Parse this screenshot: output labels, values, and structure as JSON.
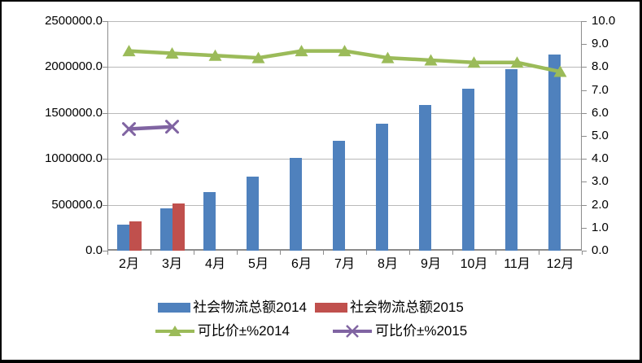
{
  "chart_data": {
    "type": "combo-bar-line",
    "title": "",
    "categories": [
      "2月",
      "3月",
      "4月",
      "5月",
      "6月",
      "7月",
      "8月",
      "9月",
      "10月",
      "11月",
      "12月"
    ],
    "left_axis": {
      "min": 0,
      "max": 2500000,
      "step": 500000,
      "tick_labels": [
        "2500000.0",
        "2000000.0",
        "1500000.0",
        "1000000.0",
        "500000.0",
        "0.0"
      ]
    },
    "right_axis": {
      "min": 0,
      "max": 10,
      "step": 1,
      "tick_labels": [
        "10.0",
        "9.0",
        "8.0",
        "7.0",
        "6.0",
        "5.0",
        "4.0",
        "3.0",
        "2.0",
        "1.0",
        "0.0"
      ]
    },
    "grid": true,
    "legend_position": "bottom",
    "series": [
      {
        "name": "社会物流总额2014",
        "type": "bar",
        "axis": "left",
        "color": "#4F81BD",
        "values": [
          280000,
          465000,
          635000,
          810000,
          1010000,
          1200000,
          1385000,
          1590000,
          1765000,
          1975000,
          2135000
        ]
      },
      {
        "name": "社会物流总额2015",
        "type": "bar",
        "axis": "left",
        "color": "#C0504D",
        "values": [
          315000,
          515000,
          null,
          null,
          null,
          null,
          null,
          null,
          null,
          null,
          null
        ]
      },
      {
        "name": "可比价±%2014",
        "type": "line",
        "marker": "triangle",
        "axis": "right",
        "color": "#9BBB59",
        "values": [
          8.7,
          8.6,
          8.5,
          8.4,
          8.7,
          8.7,
          8.4,
          8.3,
          8.2,
          8.2,
          7.8
        ]
      },
      {
        "name": "可比价±%2015",
        "type": "line",
        "marker": "x",
        "axis": "right",
        "color": "#8064A2",
        "values": [
          5.3,
          5.4,
          null,
          null,
          null,
          null,
          null,
          null,
          null,
          null,
          null
        ]
      }
    ],
    "colors": {
      "grid": "#B9B9B9",
      "axis": "#8C8C8C",
      "text": "#000000",
      "background": "#FFFFFF",
      "frame_border": "#000000"
    }
  }
}
